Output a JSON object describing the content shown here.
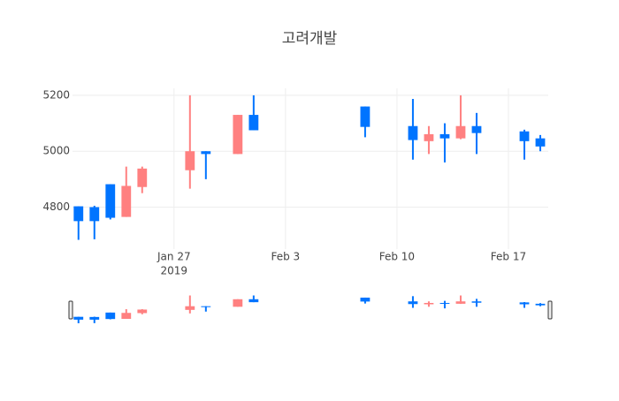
{
  "chart_data": {
    "type": "candlestick",
    "title": "고려개발",
    "x": [
      "2019-01-21",
      "2019-01-22",
      "2019-01-23",
      "2019-01-24",
      "2019-01-25",
      "2019-01-28",
      "2019-01-29",
      "2019-01-31",
      "2019-02-01",
      "2019-02-08",
      "2019-02-11",
      "2019-02-12",
      "2019-02-13",
      "2019-02-14",
      "2019-02-15",
      "2019-02-18",
      "2019-02-19"
    ],
    "open": [
      4803,
      4800,
      4882,
      4765,
      4872,
      4932,
      5000,
      4990,
      5130,
      5160,
      5090,
      5036,
      5061,
      5046,
      5090,
      5071,
      5046
    ],
    "high": [
      4803,
      4805,
      4882,
      4945,
      4945,
      5200,
      5000,
      5130,
      5200,
      5160,
      5187,
      5090,
      5100,
      5200,
      5137,
      5077,
      5058
    ],
    "low": [
      4683,
      4685,
      4756,
      4765,
      4850,
      4866,
      4900,
      4990,
      5075,
      5050,
      4970,
      4990,
      4960,
      5043,
      4990,
      4970,
      5000
    ],
    "close": [
      4750,
      4750,
      4762,
      4876,
      4938,
      5000,
      4990,
      5130,
      5075,
      5087,
      5040,
      5061,
      5046,
      5090,
      5065,
      5036,
      5017
    ],
    "increasing_color": "#ff8080",
    "decreasing_color": "#0074ff",
    "xlim": [
      "2019-01-20T15:00",
      "2019-02-19T12:00"
    ],
    "xticks": [
      {
        "value": "2019-01-27",
        "label": "Jan 27"
      },
      {
        "value": "2019-02-03",
        "label": "Feb 3"
      },
      {
        "value": "2019-02-10",
        "label": "Feb 10"
      },
      {
        "value": "2019-02-17",
        "label": "Feb 17"
      }
    ],
    "xtick_year": "2019",
    "ylim": [
      4650,
      5225
    ],
    "yticks": [
      4800,
      5000,
      5200
    ],
    "grid": true,
    "rangeslider": true
  }
}
